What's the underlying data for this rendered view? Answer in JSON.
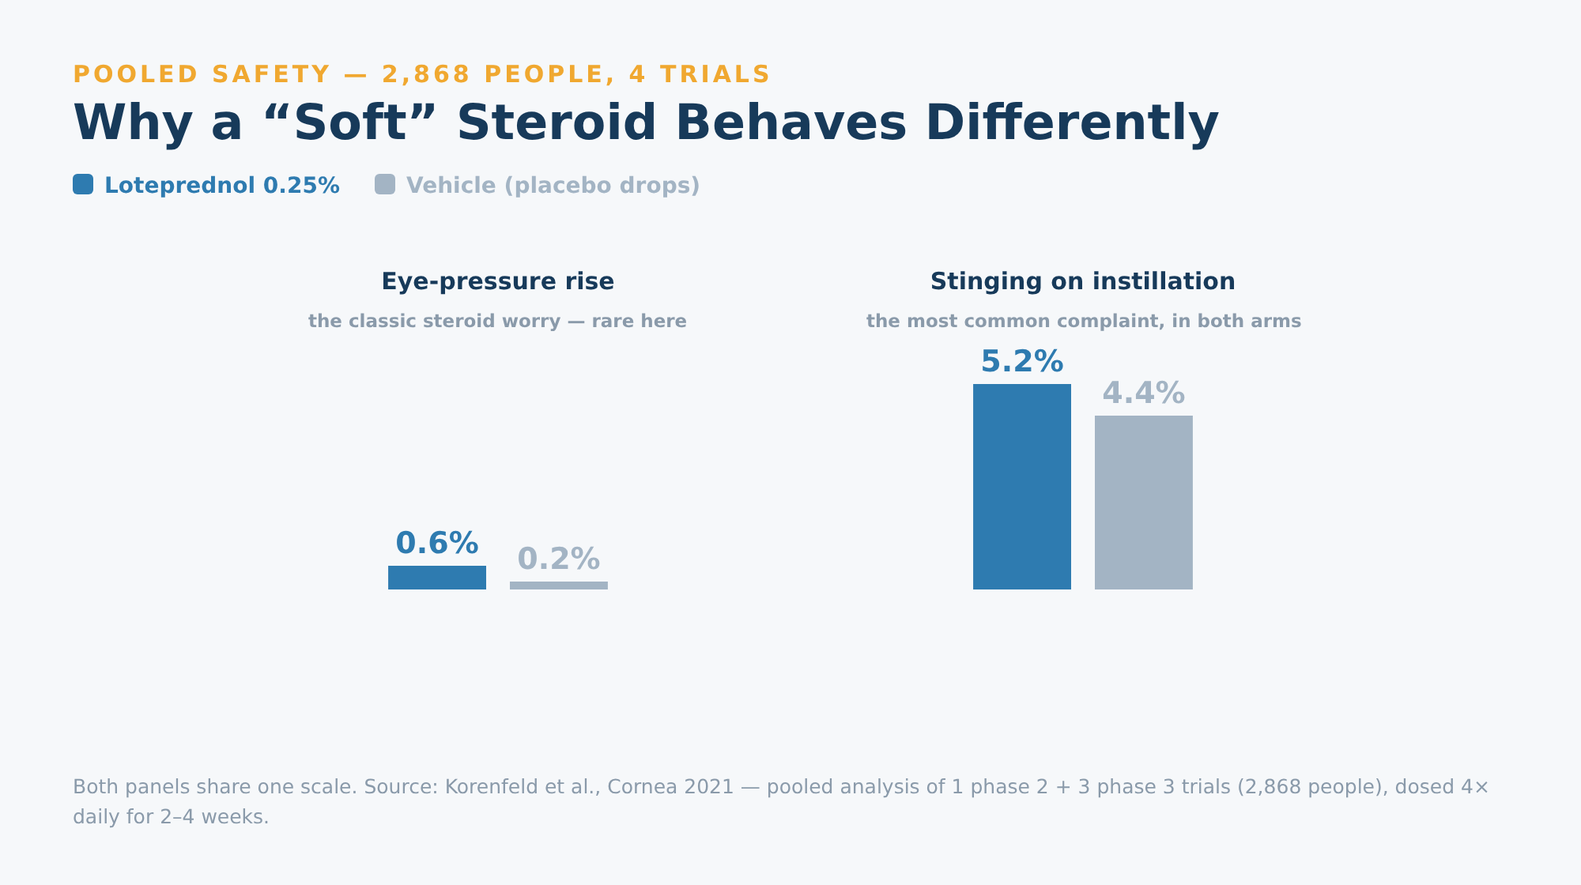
{
  "chart_data": {
    "type": "bar",
    "subtitle": "POOLED SAFETY — 2,868 PEOPLE, 4 TRIALS",
    "title": "Why a “Soft” Steroid Behaves Differently",
    "categories": [
      "Eye-pressure rise",
      "Stinging on instillation"
    ],
    "tick_labels": "x",
    "legend": "top left",
    "grid": false,
    "series": [
      {
        "name": "Loteprednol 0.25%",
        "color": "#2e7bb0",
        "values": [
          0.6,
          5.2
        ],
        "value_labels": [
          "0.6%",
          "5.2%"
        ]
      },
      {
        "name": "Vehicle (placebo drops)",
        "color": "#a3b4c4",
        "values": [
          0.2,
          4.4
        ],
        "value_labels": [
          "0.2%",
          "4.4%"
        ]
      }
    ],
    "annotations": [
      "the classic steroid worry — rare here",
      "the most common complaint, in both arms",
      "Both panels share one scale. Source: Korenfeld et al., Cornea 2021 — pooled analysis of 1 phase 2 + 3 phase 3 trials (2,868 people), dosed 4× daily for 2–4 weeks."
    ]
  }
}
